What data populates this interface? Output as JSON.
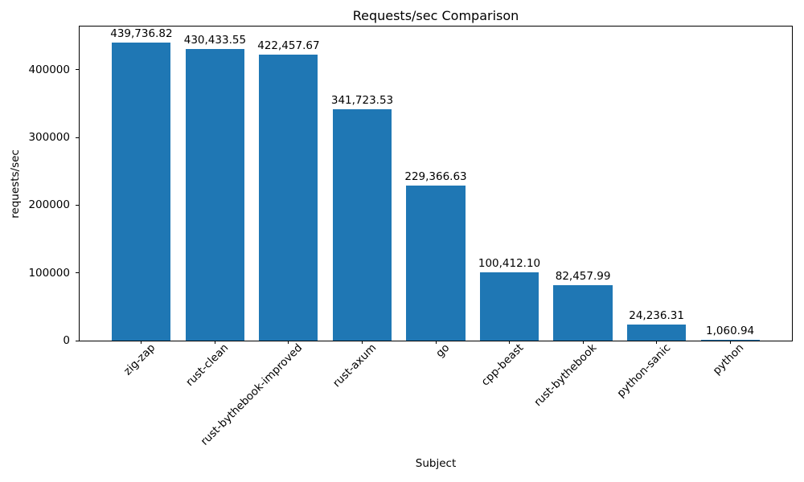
{
  "chart_data": {
    "type": "bar",
    "title": "Requests/sec Comparison",
    "xlabel": "Subject",
    "ylabel": "requests/sec",
    "categories": [
      "zig-zap",
      "rust-clean",
      "rust-bythebook-improved",
      "rust-axum",
      "go",
      "cpp-beast",
      "rust-bythebook",
      "python-sanic",
      "python"
    ],
    "values": [
      439736.82,
      430433.55,
      422457.67,
      341723.53,
      229366.63,
      100412.1,
      82457.99,
      24236.31,
      1060.94
    ],
    "value_labels": [
      "439,736.82",
      "430,433.55",
      "422,457.67",
      "341,723.53",
      "229,366.63",
      "100,412.10",
      "82,457.99",
      "24,236.31",
      "1,060.94"
    ],
    "yticks": [
      0,
      100000,
      200000,
      300000,
      400000
    ],
    "ytick_labels": [
      "0",
      "100000",
      "200000",
      "300000",
      "400000"
    ],
    "ylim": [
      0,
      464000
    ],
    "bar_color": "#1f77b4",
    "axis_color": "#000000",
    "grid": false,
    "legend": "none",
    "xtick_rotation_deg": 45
  }
}
